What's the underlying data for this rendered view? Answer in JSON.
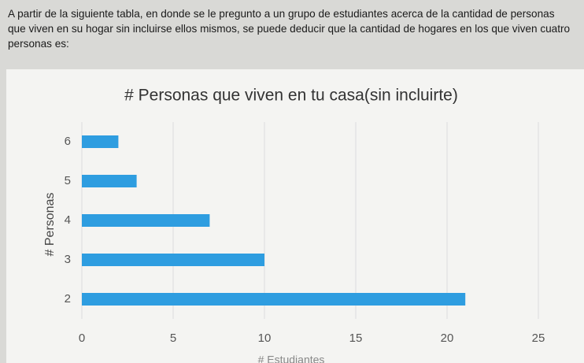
{
  "question": "A partir de la siguiente tabla, en donde se le pregunto a un grupo de estudiantes acerca de la cantidad de personas que viven en su hogar sin incluirse ellos mismos, se puede deducir que la cantidad de hogares en los que viven cuatro personas es:",
  "chart_data": {
    "type": "hbar",
    "title": "# Personas que viven en tu casa(sin incluirte)",
    "x_label": "# Estudiantes",
    "y_label": "# Personas",
    "categories": [
      "6",
      "5",
      "4",
      "3",
      "2"
    ],
    "values": [
      2,
      3,
      7,
      10,
      21
    ],
    "color": "#2e9de0",
    "xlim": [
      0,
      25
    ],
    "xticks": [
      0,
      5,
      10,
      15,
      20,
      25
    ],
    "grid": true
  }
}
